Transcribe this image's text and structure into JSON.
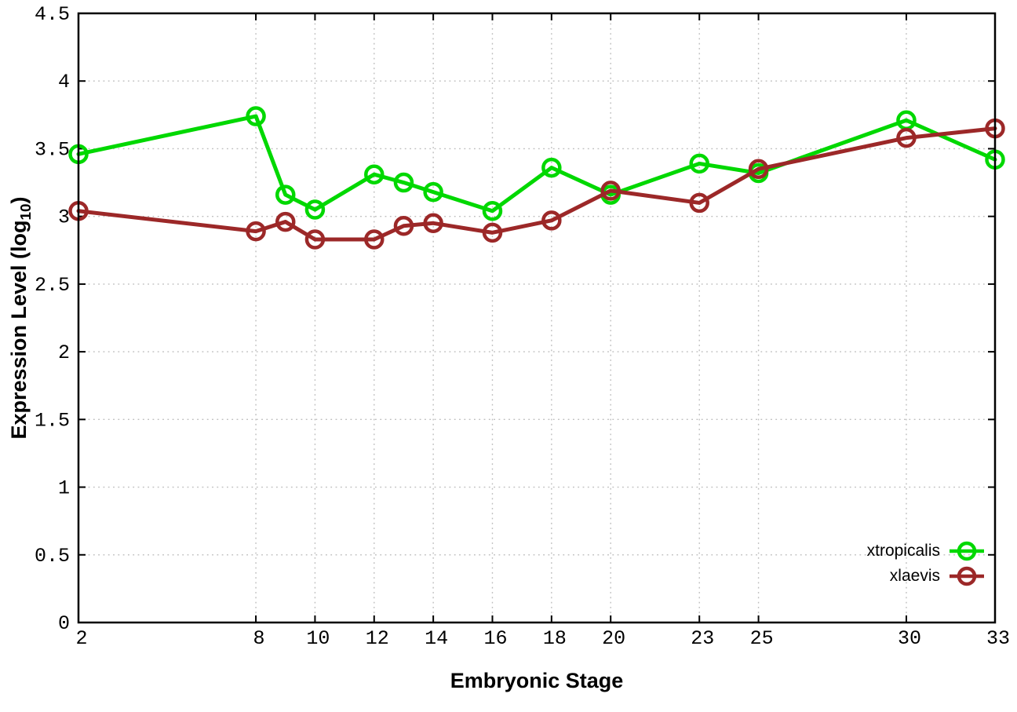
{
  "figure": {
    "background": "#ffffff",
    "border_color": "#000000",
    "grid_color": "#bdbdbd",
    "tick_color": "#000000",
    "text_color": "#000000"
  },
  "chart_data": {
    "type": "line",
    "title": "",
    "xlabel": "Embryonic Stage",
    "ylabel": "Expression Level (log10)",
    "ylabel_parts": {
      "main": "Expression Level (log",
      "sub": "10",
      "end": ")"
    },
    "x": [
      2,
      8,
      9,
      10,
      12,
      13,
      14,
      16,
      18,
      20,
      23,
      25,
      30,
      33
    ],
    "series": [
      {
        "name": "xtropicalis",
        "color": "#00d800",
        "values": [
          3.46,
          3.74,
          3.16,
          3.05,
          3.31,
          3.25,
          3.18,
          3.04,
          3.36,
          3.16,
          3.39,
          3.32,
          3.71,
          3.42
        ]
      },
      {
        "name": "xlaevis",
        "color": "#9c2828",
        "values": [
          3.04,
          2.89,
          2.96,
          2.83,
          2.83,
          2.93,
          2.95,
          2.88,
          2.97,
          3.19,
          3.1,
          3.35,
          3.58,
          3.65
        ]
      }
    ],
    "xlim": [
      2,
      33
    ],
    "ylim": [
      0,
      4.5
    ],
    "x_ticks": [
      2,
      8,
      10,
      12,
      14,
      16,
      18,
      20,
      23,
      25,
      30,
      33
    ],
    "x_tick_labels": [
      "2",
      "8",
      "10",
      "12",
      "14",
      "16",
      "18",
      "20",
      "23",
      "25",
      "30",
      "33"
    ],
    "y_ticks": [
      0,
      0.5,
      1,
      1.5,
      2,
      2.5,
      3,
      3.5,
      4,
      4.5
    ],
    "y_tick_labels": [
      "0",
      "0.5",
      "1",
      "1.5",
      "2",
      "2.5",
      "3",
      "3.5",
      "4",
      "4.5"
    ],
    "grid": true,
    "grid_style": "dotted",
    "legend_position": "bottom-right",
    "marker": "open-circle"
  }
}
